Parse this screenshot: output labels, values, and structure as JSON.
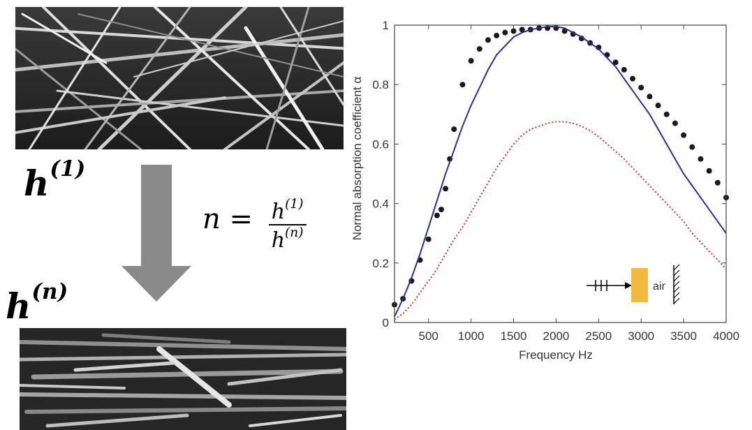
{
  "figure": {
    "label_top": "h",
    "label_top_sup": "(1)",
    "label_bottom": "h",
    "label_bottom_sup": "(n)",
    "formula": {
      "lhs": "n = ",
      "num": "h",
      "num_sup": "(1)",
      "den": "h",
      "den_sup": "(n)"
    },
    "arrow_color": "#8a8a8a",
    "inset_material_label": "air",
    "inset_material_color": "#F0B940"
  },
  "chart_data": {
    "type": "line",
    "title": "",
    "xlabel": "Frequency  Hz",
    "ylabel": "Normal absorption coefficient α",
    "xlim": [
      100,
      4000
    ],
    "ylim": [
      0,
      1
    ],
    "xticks": [
      500,
      1000,
      1500,
      2000,
      2500,
      3000,
      3500,
      4000
    ],
    "yticks": [
      0,
      0.2,
      0.4,
      0.6,
      0.8,
      1
    ],
    "ytick_labels": [
      "0",
      "0.2",
      "0.4",
      "0.6",
      "0.8",
      "1"
    ],
    "grid": false,
    "series": [
      {
        "style": "markers",
        "color": "#1a1a1a",
        "x": [
          100,
          200,
          300,
          400,
          500,
          600,
          650,
          700,
          750,
          800,
          900,
          1000,
          1100,
          1200,
          1300,
          1400,
          1500,
          1600,
          1700,
          1800,
          1900,
          2000,
          2100,
          2200,
          2300,
          2400,
          2500,
          2600,
          2700,
          2800,
          2900,
          3000,
          3100,
          3200,
          3300,
          3400,
          3500,
          3600,
          3700,
          3800,
          3900,
          4000
        ],
        "y": [
          0.06,
          0.08,
          0.14,
          0.21,
          0.28,
          0.36,
          0.38,
          0.45,
          0.55,
          0.65,
          0.8,
          0.88,
          0.92,
          0.95,
          0.965,
          0.975,
          0.98,
          0.985,
          0.985,
          0.99,
          0.99,
          0.99,
          0.98,
          0.97,
          0.955,
          0.94,
          0.925,
          0.9,
          0.875,
          0.85,
          0.82,
          0.79,
          0.76,
          0.73,
          0.7,
          0.67,
          0.63,
          0.59,
          0.55,
          0.51,
          0.47,
          0.42
        ]
      },
      {
        "style": "solid",
        "color": "#2b2f8f",
        "x": [
          100,
          200,
          300,
          400,
          500,
          600,
          700,
          800,
          900,
          1000,
          1100,
          1200,
          1300,
          1400,
          1500,
          1600,
          1700,
          1800,
          1900,
          2000,
          2100,
          2200,
          2300,
          2400,
          2500,
          2600,
          2700,
          2800,
          2900,
          3000,
          3100,
          3200,
          3300,
          3400,
          3500,
          3600,
          3700,
          3800,
          3900,
          4000
        ],
        "y": [
          0.02,
          0.08,
          0.15,
          0.23,
          0.32,
          0.41,
          0.5,
          0.58,
          0.66,
          0.73,
          0.79,
          0.85,
          0.9,
          0.93,
          0.96,
          0.975,
          0.985,
          0.99,
          0.995,
          0.995,
          0.99,
          0.975,
          0.96,
          0.94,
          0.92,
          0.89,
          0.86,
          0.82,
          0.78,
          0.74,
          0.7,
          0.65,
          0.6,
          0.55,
          0.5,
          0.46,
          0.42,
          0.38,
          0.34,
          0.3
        ]
      },
      {
        "style": "dotted",
        "color": "#e03030",
        "x": [
          100,
          200,
          300,
          400,
          500,
          600,
          700,
          800,
          900,
          1000,
          1100,
          1200,
          1300,
          1400,
          1500,
          1600,
          1700,
          1800,
          1900,
          2000,
          2100,
          2200,
          2300,
          2400,
          2500,
          2600,
          2700,
          2800,
          2900,
          3000,
          3100,
          3200,
          3300,
          3400,
          3500,
          3600,
          3700,
          3800,
          3900,
          4000
        ],
        "y": [
          0.01,
          0.03,
          0.06,
          0.1,
          0.14,
          0.18,
          0.23,
          0.28,
          0.32,
          0.37,
          0.42,
          0.47,
          0.52,
          0.56,
          0.6,
          0.63,
          0.65,
          0.66,
          0.67,
          0.675,
          0.675,
          0.67,
          0.66,
          0.645,
          0.625,
          0.6,
          0.575,
          0.55,
          0.52,
          0.49,
          0.46,
          0.43,
          0.4,
          0.37,
          0.34,
          0.3,
          0.27,
          0.24,
          0.21,
          0.18
        ]
      }
    ]
  }
}
